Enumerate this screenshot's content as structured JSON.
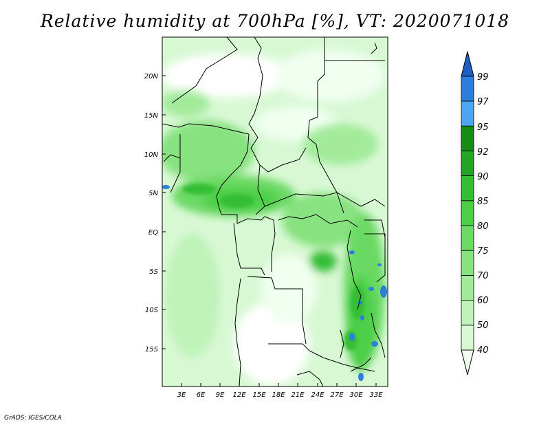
{
  "title": "Relative humidity at 700hPa [%], VT: 2020071018",
  "footer": "GrADS: IGES/COLA",
  "lat_labels": [
    "20N",
    "15N",
    "10N",
    "5N",
    "EQ",
    "5S",
    "10S",
    "15S"
  ],
  "lon_labels": [
    "3E",
    "6E",
    "9E",
    "12E",
    "15E",
    "18E",
    "21E",
    "24E",
    "27E",
    "30E",
    "33E"
  ],
  "colorbar": {
    "levels": [
      "40",
      "50",
      "60",
      "70",
      "75",
      "80",
      "85",
      "90",
      "92",
      "95",
      "97",
      "99"
    ],
    "colors": [
      "#f0fff0",
      "#d8f8d4",
      "#bff3b9",
      "#a3eb9b",
      "#87e280",
      "#6bd964",
      "#4ecf48",
      "#36bd36",
      "#25a325",
      "#178c17",
      "#4fa6f0",
      "#2e7fdc",
      "#1f5fbf"
    ]
  }
}
